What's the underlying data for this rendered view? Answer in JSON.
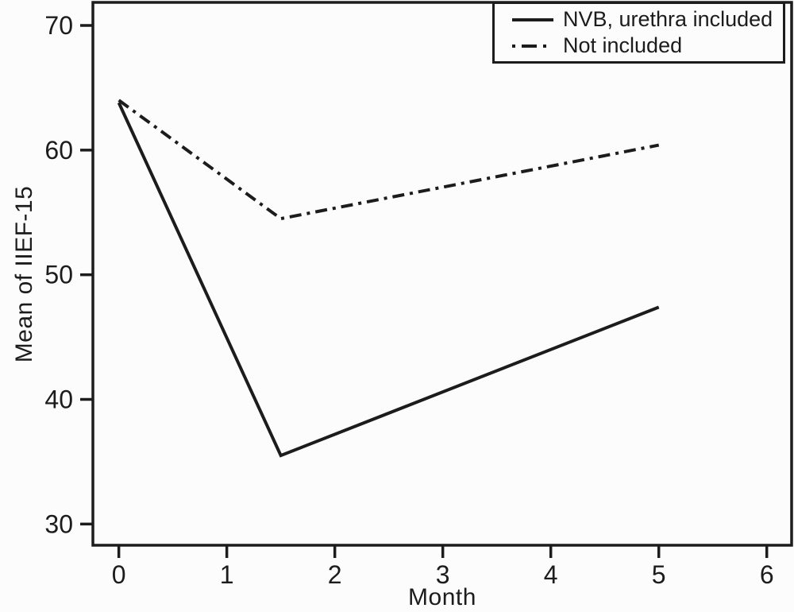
{
  "figure": {
    "background": "#fcfcfc",
    "ink_color": "#1c1c1c"
  },
  "chart_data": {
    "type": "line",
    "title": "",
    "xlabel": "Month",
    "ylabel": "Mean of IIEF-15",
    "x": [
      0,
      1.5,
      5
    ],
    "series": [
      {
        "name": "NVB, urethra included",
        "line_style": "solid",
        "values": [
          63.8,
          35.5,
          47.4
        ]
      },
      {
        "name": "Not included",
        "line_style": "dash-dot",
        "values": [
          64.0,
          54.5,
          60.4
        ]
      }
    ],
    "x_ticks": [
      0,
      1,
      2,
      3,
      4,
      5,
      6
    ],
    "y_ticks": [
      30,
      40,
      50,
      60,
      70
    ],
    "xlim": [
      -0.24,
      6.23
    ],
    "ylim": [
      28.3,
      71.85
    ],
    "grid": false,
    "legend_position": "top-right",
    "frame": "full-box"
  }
}
